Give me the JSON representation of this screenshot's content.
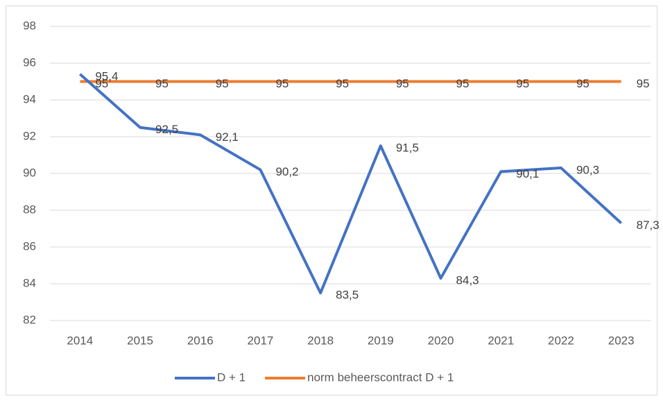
{
  "chart_data": {
    "type": "line",
    "categories": [
      "2014",
      "2015",
      "2016",
      "2017",
      "2018",
      "2019",
      "2020",
      "2021",
      "2022",
      "2023"
    ],
    "series": [
      {
        "name": "D + 1",
        "color": "#4472c4",
        "values": [
          95.4,
          92.5,
          92.1,
          90.2,
          83.5,
          91.5,
          84.3,
          90.1,
          90.3,
          87.3
        ],
        "value_labels": [
          "95,4",
          "92,5",
          "92,1",
          "90,2",
          "83,5",
          "91,5",
          "84,3",
          "90,1",
          "90,3",
          "87,3"
        ]
      },
      {
        "name": "norm beheerscontract D + 1",
        "color": "#ed7d31",
        "values": [
          95,
          95,
          95,
          95,
          95,
          95,
          95,
          95,
          95,
          95
        ]
      }
    ],
    "ylim": [
      82,
      98
    ],
    "yticks": [
      82,
      84,
      86,
      88,
      90,
      92,
      94,
      96,
      98
    ],
    "grid": true,
    "legend": "bottom"
  }
}
